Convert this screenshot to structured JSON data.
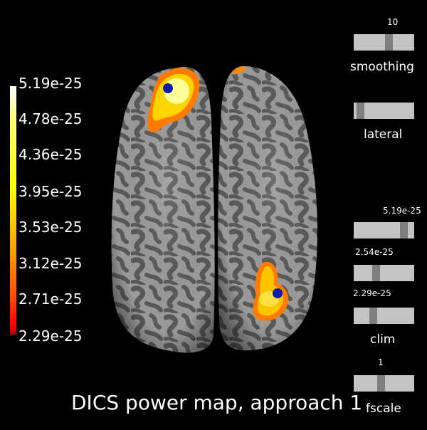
{
  "title": "DICS power map, approach 1",
  "colorbar": {
    "labels": [
      "5.19e-25",
      "4.78e-25",
      "4.36e-25",
      "3.95e-25",
      "3.53e-25",
      "3.12e-25",
      "2.71e-25",
      "2.29e-25"
    ],
    "colors": [
      "#ffffff",
      "#ffff00",
      "#ff9a00",
      "#ff0000",
      "#ab0000"
    ]
  },
  "sliders": {
    "smoothing": {
      "label": "smoothing",
      "value": "10",
      "fraction": 0.6
    },
    "lateral": {
      "label": "lateral",
      "fraction": 0.05
    },
    "clim_max": {
      "value": "5.19e-25",
      "fraction": 0.88
    },
    "clim_mid": {
      "value": "2.54e-25",
      "fraction": 0.35
    },
    "clim_min": {
      "value": "2.29e-25",
      "fraction": 0.3
    },
    "clim_label": "clim",
    "fscale": {
      "label": "fscale",
      "value": "1",
      "fraction": 0.45
    }
  },
  "brain": {
    "surface_light": "#9a9a9a",
    "surface_dark": "#585858",
    "dipole_color": "#0a1ca8"
  }
}
